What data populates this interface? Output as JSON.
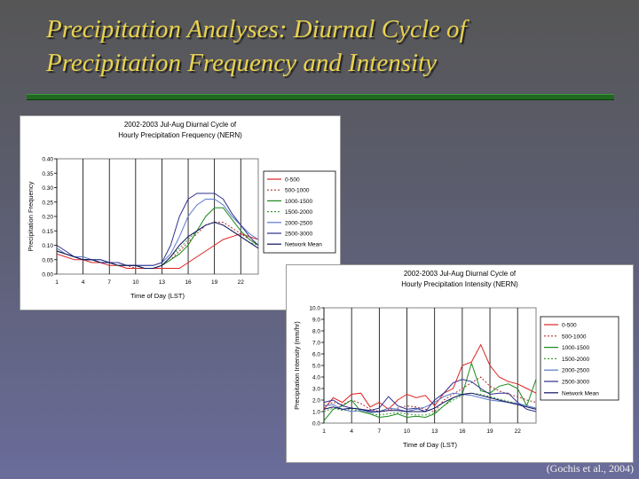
{
  "slide": {
    "title_line1": "Precipitation Analyses: Diurnal Cycle of",
    "title_line2": "Precipitation Frequency and Intensity",
    "citation": "(Gochis et al., 2004)"
  },
  "chart_data": [
    {
      "type": "line",
      "title_line1": "2002-2003 Jul-Aug Diurnal Cycle of",
      "title_line2": "Hourly Precipitation Frequency (NERN)",
      "xlabel": "Time of Day (LST)",
      "ylabel": "Precipitation Frequency",
      "x": [
        1,
        2,
        3,
        4,
        5,
        6,
        7,
        8,
        9,
        10,
        11,
        12,
        13,
        14,
        15,
        16,
        17,
        18,
        19,
        20,
        21,
        22,
        23,
        24
      ],
      "xticks": [
        1,
        4,
        7,
        10,
        13,
        16,
        19,
        22
      ],
      "yticks": [
        "0.00",
        "0.05",
        "0.10",
        "0.15",
        "0.20",
        "0.25",
        "0.30",
        "0.35",
        "0.40"
      ],
      "ylim": [
        0,
        0.4
      ],
      "grid": "vertical",
      "legend": "right",
      "series": [
        {
          "name": "0-500",
          "color": "#e02020",
          "dash": "",
          "values": [
            0.07,
            0.06,
            0.05,
            0.05,
            0.04,
            0.04,
            0.03,
            0.03,
            0.02,
            0.02,
            0.02,
            0.02,
            0.02,
            0.02,
            0.02,
            0.04,
            0.06,
            0.08,
            0.1,
            0.12,
            0.13,
            0.14,
            0.13,
            0.12
          ]
        },
        {
          "name": "500-1000",
          "color": "#b03030",
          "dash": "2,2",
          "values": [
            0.08,
            0.07,
            0.06,
            0.05,
            0.05,
            0.04,
            0.04,
            0.03,
            0.03,
            0.02,
            0.02,
            0.02,
            0.03,
            0.05,
            0.08,
            0.11,
            0.14,
            0.17,
            0.18,
            0.18,
            0.16,
            0.14,
            0.12,
            0.1
          ]
        },
        {
          "name": "1000-1500",
          "color": "#1a8a1a",
          "dash": "",
          "values": [
            0.08,
            0.07,
            0.06,
            0.05,
            0.05,
            0.04,
            0.04,
            0.03,
            0.03,
            0.03,
            0.02,
            0.02,
            0.03,
            0.05,
            0.07,
            0.1,
            0.15,
            0.2,
            0.23,
            0.23,
            0.19,
            0.15,
            0.12,
            0.1
          ]
        },
        {
          "name": "1500-2000",
          "color": "#3aa03a",
          "dash": "2,2",
          "values": [
            0.08,
            0.07,
            0.06,
            0.06,
            0.05,
            0.05,
            0.04,
            0.03,
            0.03,
            0.03,
            0.02,
            0.02,
            0.03,
            0.06,
            0.09,
            0.12,
            0.15,
            0.17,
            0.18,
            0.17,
            0.15,
            0.13,
            0.11,
            0.1
          ]
        },
        {
          "name": "2000-2500",
          "color": "#5a78c8",
          "dash": "",
          "values": [
            0.09,
            0.07,
            0.06,
            0.06,
            0.05,
            0.05,
            0.04,
            0.04,
            0.03,
            0.03,
            0.03,
            0.03,
            0.04,
            0.07,
            0.13,
            0.2,
            0.24,
            0.26,
            0.26,
            0.24,
            0.2,
            0.17,
            0.14,
            0.12
          ]
        },
        {
          "name": "2500-3000",
          "color": "#303090",
          "dash": "",
          "values": [
            0.1,
            0.08,
            0.06,
            0.05,
            0.05,
            0.05,
            0.04,
            0.04,
            0.03,
            0.03,
            0.03,
            0.03,
            0.04,
            0.1,
            0.2,
            0.26,
            0.28,
            0.28,
            0.28,
            0.26,
            0.21,
            0.17,
            0.13,
            0.1
          ]
        },
        {
          "name": "Network Mean",
          "color": "#101060",
          "dash": "",
          "values": [
            0.08,
            0.07,
            0.06,
            0.05,
            0.05,
            0.04,
            0.04,
            0.03,
            0.03,
            0.03,
            0.02,
            0.02,
            0.03,
            0.06,
            0.1,
            0.13,
            0.15,
            0.17,
            0.18,
            0.17,
            0.15,
            0.13,
            0.11,
            0.09
          ]
        }
      ]
    },
    {
      "type": "line",
      "title_line1": "2002-2003 Jul-Aug Diurnal Cycle of",
      "title_line2": "Hourly Precipitation Intensity (NERN)",
      "xlabel": "Time of Day (LST)",
      "ylabel": "Precipitation Intensity (mm/hr)",
      "x": [
        1,
        2,
        3,
        4,
        5,
        6,
        7,
        8,
        9,
        10,
        11,
        12,
        13,
        14,
        15,
        16,
        17,
        18,
        19,
        20,
        21,
        22,
        23,
        24
      ],
      "xticks": [
        1,
        4,
        7,
        10,
        13,
        16,
        19,
        22
      ],
      "yticks": [
        "0.0",
        "1.0",
        "2.0",
        "3.0",
        "4.0",
        "5.0",
        "6.0",
        "7.0",
        "8.0",
        "9.0",
        "10.0"
      ],
      "ylim": [
        0,
        10.0
      ],
      "grid": "vertical",
      "legend": "right",
      "series": [
        {
          "name": "0-500",
          "color": "#e02020",
          "dash": "",
          "values": [
            1.2,
            2.2,
            1.8,
            2.5,
            2.6,
            1.4,
            1.8,
            1.2,
            2.0,
            2.5,
            2.2,
            2.4,
            1.5,
            2.6,
            3.0,
            5.0,
            5.3,
            6.8,
            5.0,
            4.0,
            3.6,
            3.4,
            3.0,
            2.6
          ]
        },
        {
          "name": "500-1000",
          "color": "#b03030",
          "dash": "2,2",
          "values": [
            1.5,
            1.8,
            1.6,
            2.0,
            1.7,
            1.2,
            1.0,
            1.1,
            1.3,
            1.5,
            1.4,
            1.2,
            1.0,
            2.0,
            2.5,
            3.0,
            3.5,
            4.0,
            3.2,
            2.8,
            2.5,
            2.3,
            2.0,
            1.8
          ]
        },
        {
          "name": "1000-1500",
          "color": "#1a8a1a",
          "dash": "",
          "values": [
            0.2,
            1.2,
            1.5,
            2.0,
            1.0,
            0.8,
            0.5,
            0.6,
            0.8,
            0.5,
            0.6,
            0.5,
            0.8,
            1.5,
            2.2,
            2.5,
            5.2,
            2.8,
            2.6,
            3.2,
            3.4,
            3.0,
            1.5,
            3.8
          ]
        },
        {
          "name": "1500-2000",
          "color": "#3aa03a",
          "dash": "2,2",
          "values": [
            1.0,
            1.3,
            1.1,
            1.2,
            1.0,
            0.8,
            0.7,
            0.8,
            0.9,
            0.8,
            0.7,
            0.7,
            0.9,
            1.5,
            2.0,
            2.4,
            2.6,
            2.5,
            2.3,
            2.1,
            1.9,
            1.7,
            1.5,
            1.3
          ]
        },
        {
          "name": "2000-2500",
          "color": "#5a78c8",
          "dash": "",
          "values": [
            1.5,
            1.6,
            1.2,
            1.0,
            1.1,
            0.9,
            1.0,
            1.3,
            1.2,
            1.0,
            1.2,
            1.4,
            1.8,
            2.3,
            2.6,
            2.5,
            2.4,
            2.2,
            2.0,
            1.9,
            1.8,
            1.7,
            1.5,
            1.3
          ]
        },
        {
          "name": "2500-3000",
          "color": "#303090",
          "dash": "",
          "values": [
            1.8,
            2.0,
            1.5,
            1.3,
            1.2,
            1.1,
            1.3,
            2.3,
            1.5,
            1.2,
            1.3,
            1.0,
            2.0,
            2.6,
            3.5,
            3.8,
            3.6,
            3.0,
            2.5,
            2.6,
            2.6,
            1.8,
            1.2,
            1.0
          ]
        },
        {
          "name": "Network Mean",
          "color": "#101060",
          "dash": "",
          "values": [
            1.2,
            1.4,
            1.2,
            1.3,
            1.2,
            1.0,
            1.0,
            1.1,
            1.1,
            1.0,
            1.0,
            1.0,
            1.3,
            1.8,
            2.2,
            2.5,
            2.6,
            2.4,
            2.2,
            2.0,
            1.8,
            1.6,
            1.4,
            1.2
          ]
        }
      ]
    }
  ]
}
